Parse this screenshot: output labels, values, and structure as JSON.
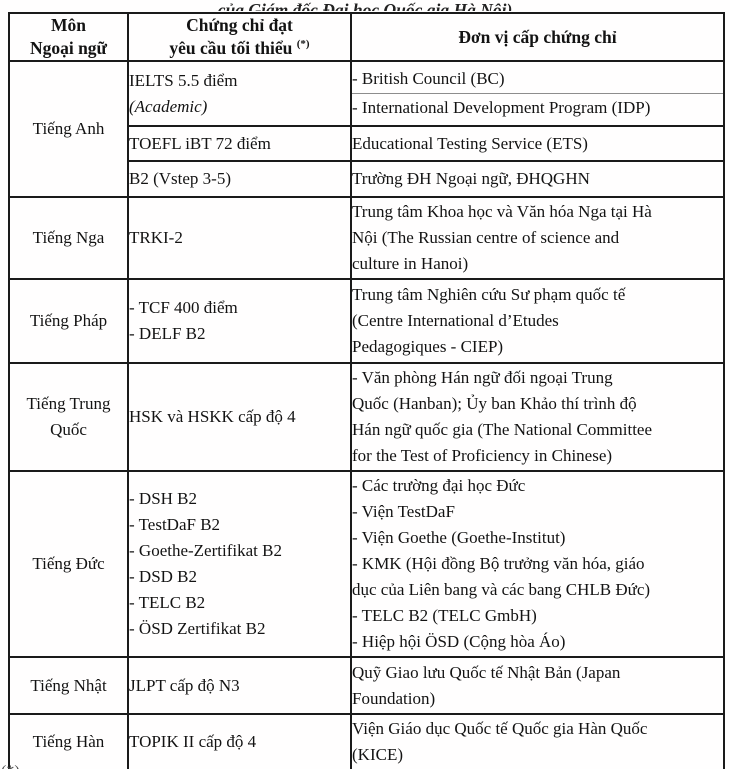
{
  "page": {
    "top_partial_text": "của Giám đốc Đại học Quốc gia Hà Nội)",
    "bottom_left_fragment": "(*)",
    "bottom_right_accent": "́"
  },
  "table": {
    "header": {
      "subject_line1": "Môn",
      "subject_line2": "Ngoại ngữ",
      "certificate_line1": "Chứng chỉ đạt",
      "certificate_line2": "yêu cầu tối thiểu",
      "certificate_sup": "(*)",
      "issuer": "Đơn vị cấp chứng chỉ"
    },
    "sections": [
      {
        "subject": "Tiếng Anh",
        "rows": [
          {
            "cert_lines": [
              {
                "text": "IELTS 5.5 điểm"
              },
              {
                "text": "(Academic)",
                "italic": true
              }
            ],
            "issuer_blocks": [
              {
                "lines": [
                  "- British Council (BC)"
                ]
              },
              {
                "lines": [
                  "- International Development Program (IDP)"
                ]
              }
            ]
          },
          {
            "cert_lines": [
              {
                "text": "TOEFL iBT 72 điểm"
              }
            ],
            "issuer_blocks": [
              {
                "lines": [
                  "Educational Testing Service (ETS)"
                ]
              }
            ]
          },
          {
            "cert_lines": [
              {
                "text": "B2 (Vstep 3-5)"
              }
            ],
            "issuer_blocks": [
              {
                "lines": [
                  "Trường ĐH Ngoại ngữ, ĐHQGHN"
                ]
              }
            ]
          }
        ]
      },
      {
        "subject": "Tiếng Nga",
        "rows": [
          {
            "cert_lines": [
              {
                "text": "TRKI-2"
              }
            ],
            "issuer_blocks": [
              {
                "lines": [
                  "Trung tâm Khoa học và Văn hóa Nga tại Hà",
                  "Nội (The Russian centre of science and",
                  "culture in Hanoi)"
                ]
              }
            ]
          }
        ]
      },
      {
        "subject": "Tiếng Pháp",
        "rows": [
          {
            "cert_lines": [
              {
                "text": "- TCF 400 điểm"
              },
              {
                "text": "- DELF B2"
              }
            ],
            "issuer_blocks": [
              {
                "lines": [
                  "Trung tâm Nghiên cứu Sư phạm quốc tế",
                  "(Centre International d’Etudes",
                  "Pedagogiques - CIEP)"
                ]
              }
            ]
          }
        ]
      },
      {
        "subject": "Tiếng Trung Quốc",
        "rows": [
          {
            "cert_lines": [
              {
                "text": "HSK và HSKK cấp độ 4"
              }
            ],
            "issuer_blocks": [
              {
                "lines": [
                  "- Văn phòng Hán ngữ đối ngoại Trung",
                  "Quốc (Hanban); Ủy ban Khảo thí trình độ",
                  "Hán ngữ quốc gia (The National Committee",
                  "for the Test of Proficiency in Chinese)"
                ]
              }
            ]
          }
        ]
      },
      {
        "subject": "Tiếng Đức",
        "rows": [
          {
            "cert_lines": [
              {
                "text": "- DSH B2"
              },
              {
                "text": "- TestDaF B2"
              },
              {
                "text": "- Goethe-Zertifikat B2"
              },
              {
                "text": "- DSD B2"
              },
              {
                "text": "- TELC B2"
              },
              {
                "text": "- ÖSD Zertifikat B2"
              }
            ],
            "issuer_blocks": [
              {
                "lines": [
                  "- Các trường đại học Đức",
                  "- Viện TestDaF",
                  "- Viện Goethe (Goethe-Institut)",
                  "- KMK (Hội đồng Bộ trưởng văn hóa, giáo",
                  "dục của Liên bang và các bang CHLB Đức)",
                  "- TELC B2 (TELC GmbH)",
                  "- Hiệp hội ÖSD (Cộng hòa Áo)"
                ]
              }
            ]
          }
        ]
      },
      {
        "subject": "Tiếng Nhật",
        "rows": [
          {
            "cert_lines": [
              {
                "text": "JLPT cấp độ N3"
              }
            ],
            "issuer_blocks": [
              {
                "lines": [
                  "Quỹ Giao lưu Quốc tế Nhật Bản (Japan",
                  "Foundation)"
                ]
              }
            ]
          }
        ]
      },
      {
        "subject": "Tiếng Hàn",
        "rows": [
          {
            "cert_lines": [
              {
                "text": "TOPIK II cấp độ 4"
              }
            ],
            "issuer_blocks": [
              {
                "lines": [
                  "Viện Giáo dục Quốc tế Quốc gia Hàn Quốc",
                  "(KICE)"
                ]
              }
            ]
          }
        ]
      }
    ]
  }
}
